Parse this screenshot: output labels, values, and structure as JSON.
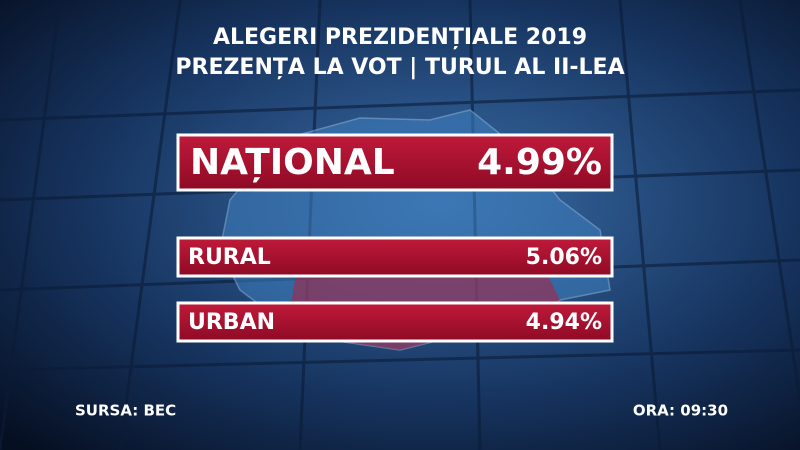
{
  "header": {
    "title_lines": [
      "ALEGERI PREZIDENȚIALE 2019",
      "PREZENȚA LA VOT | TURUL AL II-LEA"
    ]
  },
  "rows": [
    {
      "label": "NAȚIONAL",
      "value": "4.99%"
    },
    {
      "label": "RURAL",
      "value": "5.06%"
    },
    {
      "label": "URBAN",
      "value": "4.94%"
    }
  ],
  "footer": {
    "source": "SURSA: BEC",
    "time": "ORA: 09:30"
  }
}
